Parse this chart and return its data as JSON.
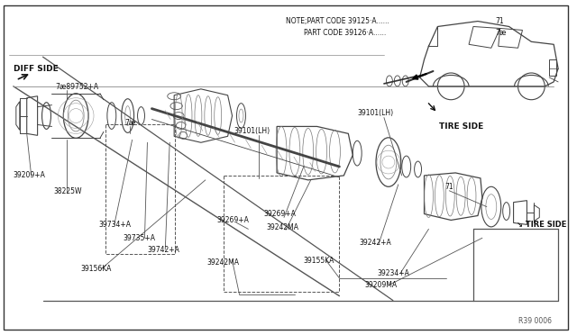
{
  "bg_color": "#f5f5f5",
  "border_color": "#333333",
  "line_color": "#444444",
  "text_color": "#111111",
  "ref_code": "R39 0006",
  "figsize": [
    6.4,
    3.72
  ],
  "dpi": 100,
  "note1": "NOTE;PART CODE 39125·A......",
  "note2": "PART CODE 39126·A......",
  "note_num1": "71",
  "note_num2": "7æ"
}
